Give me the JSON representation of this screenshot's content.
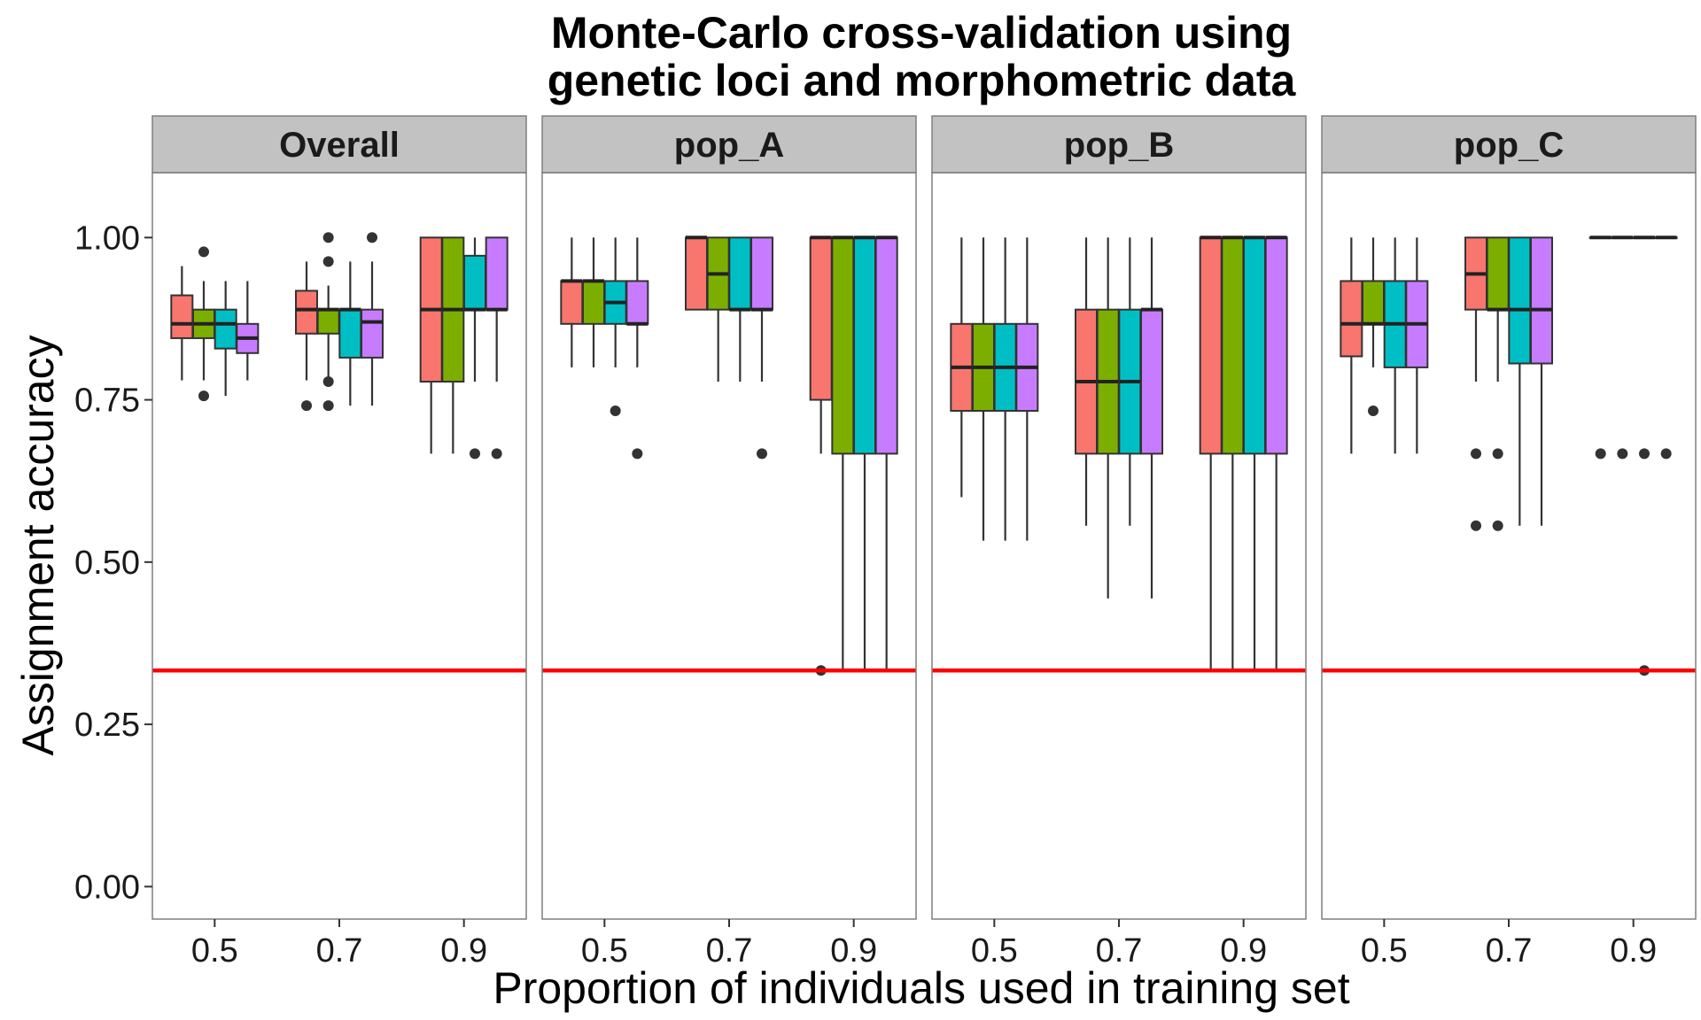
{
  "chart_data": {
    "type": "box",
    "title": [
      "Monte-Carlo cross-validation using",
      "genetic loci and morphometric data"
    ],
    "xlabel": "Proportion of individuals used in training set",
    "ylabel": "Assignment accuracy",
    "ylim": [
      -0.05,
      1.1
    ],
    "yticks": [
      0.0,
      0.25,
      0.5,
      0.75,
      1.0
    ],
    "ytick_labels": [
      "0.00",
      "0.25",
      "0.50",
      "0.75",
      "1.00"
    ],
    "categories": [
      "0.5",
      "0.7",
      "0.9"
    ],
    "reference_line": {
      "y": 0.333,
      "color": "#ff0000"
    },
    "series_colors": [
      "#F8766D",
      "#7CAE00",
      "#00BFC4",
      "#C77CFF"
    ],
    "legend": "none",
    "grid": false,
    "facets": [
      {
        "label": "Overall",
        "boxes": [
          [
            {
              "whislo": 0.78,
              "q1": 0.845,
              "med": 0.867,
              "q3": 0.911,
              "whishi": 0.956,
              "outliers": []
            },
            {
              "whislo": 0.78,
              "q1": 0.845,
              "med": 0.867,
              "q3": 0.889,
              "whishi": 0.933,
              "outliers": [
                0.978,
                0.756
              ]
            },
            {
              "whislo": 0.756,
              "q1": 0.829,
              "med": 0.867,
              "q3": 0.889,
              "whishi": 0.933,
              "outliers": []
            },
            {
              "whislo": 0.78,
              "q1": 0.822,
              "med": 0.845,
              "q3": 0.867,
              "whishi": 0.933,
              "outliers": []
            }
          ],
          [
            {
              "whislo": 0.78,
              "q1": 0.852,
              "med": 0.889,
              "q3": 0.918,
              "whishi": 0.963,
              "outliers": [
                0.741
              ]
            },
            {
              "whislo": 0.78,
              "q1": 0.852,
              "med": 0.889,
              "q3": 0.889,
              "whishi": 0.926,
              "outliers": [
                1.0,
                0.963,
                0.778,
                0.741
              ]
            },
            {
              "whislo": 0.741,
              "q1": 0.815,
              "med": 0.889,
              "q3": 0.889,
              "whishi": 0.963,
              "outliers": []
            },
            {
              "whislo": 0.741,
              "q1": 0.815,
              "med": 0.87,
              "q3": 0.889,
              "whishi": 0.963,
              "outliers": [
                1.0
              ]
            }
          ],
          [
            {
              "whislo": 0.667,
              "q1": 0.778,
              "med": 0.889,
              "q3": 1.0,
              "whishi": 1.0,
              "outliers": []
            },
            {
              "whislo": 0.667,
              "q1": 0.778,
              "med": 0.889,
              "q3": 1.0,
              "whishi": 1.0,
              "outliers": []
            },
            {
              "whislo": 0.778,
              "q1": 0.889,
              "med": 0.889,
              "q3": 0.972,
              "whishi": 1.0,
              "outliers": [
                0.667
              ]
            },
            {
              "whislo": 0.778,
              "q1": 0.889,
              "med": 0.889,
              "q3": 1.0,
              "whishi": 1.0,
              "outliers": [
                0.667
              ]
            }
          ]
        ]
      },
      {
        "label": "pop_A",
        "boxes": [
          [
            {
              "whislo": 0.8,
              "q1": 0.867,
              "med": 0.933,
              "q3": 0.933,
              "whishi": 1.0,
              "outliers": []
            },
            {
              "whislo": 0.8,
              "q1": 0.867,
              "med": 0.933,
              "q3": 0.933,
              "whishi": 1.0,
              "outliers": []
            },
            {
              "whislo": 0.8,
              "q1": 0.867,
              "med": 0.9,
              "q3": 0.933,
              "whishi": 1.0,
              "outliers": [
                0.733
              ]
            },
            {
              "whislo": 0.8,
              "q1": 0.867,
              "med": 0.867,
              "q3": 0.933,
              "whishi": 1.0,
              "outliers": [
                0.667
              ]
            }
          ],
          [
            {
              "whislo": 0.889,
              "q1": 0.889,
              "med": 1.0,
              "q3": 1.0,
              "whishi": 1.0,
              "outliers": []
            },
            {
              "whislo": 0.778,
              "q1": 0.889,
              "med": 0.944,
              "q3": 1.0,
              "whishi": 1.0,
              "outliers": []
            },
            {
              "whislo": 0.778,
              "q1": 0.889,
              "med": 0.889,
              "q3": 1.0,
              "whishi": 1.0,
              "outliers": []
            },
            {
              "whislo": 0.778,
              "q1": 0.889,
              "med": 0.889,
              "q3": 1.0,
              "whishi": 1.0,
              "outliers": [
                0.667
              ]
            }
          ],
          [
            {
              "whislo": 0.667,
              "q1": 0.75,
              "med": 1.0,
              "q3": 1.0,
              "whishi": 1.0,
              "outliers": [
                0.333
              ]
            },
            {
              "whislo": 0.333,
              "q1": 0.667,
              "med": 1.0,
              "q3": 1.0,
              "whishi": 1.0,
              "outliers": []
            },
            {
              "whislo": 0.333,
              "q1": 0.667,
              "med": 1.0,
              "q3": 1.0,
              "whishi": 1.0,
              "outliers": []
            },
            {
              "whislo": 0.333,
              "q1": 0.667,
              "med": 1.0,
              "q3": 1.0,
              "whishi": 1.0,
              "outliers": []
            }
          ]
        ]
      },
      {
        "label": "pop_B",
        "boxes": [
          [
            {
              "whislo": 0.6,
              "q1": 0.733,
              "med": 0.8,
              "q3": 0.867,
              "whishi": 1.0,
              "outliers": []
            },
            {
              "whislo": 0.533,
              "q1": 0.733,
              "med": 0.8,
              "q3": 0.867,
              "whishi": 1.0,
              "outliers": []
            },
            {
              "whislo": 0.533,
              "q1": 0.733,
              "med": 0.8,
              "q3": 0.867,
              "whishi": 1.0,
              "outliers": []
            },
            {
              "whislo": 0.533,
              "q1": 0.733,
              "med": 0.8,
              "q3": 0.867,
              "whishi": 1.0,
              "outliers": []
            }
          ],
          [
            {
              "whislo": 0.556,
              "q1": 0.667,
              "med": 0.778,
              "q3": 0.889,
              "whishi": 1.0,
              "outliers": []
            },
            {
              "whislo": 0.444,
              "q1": 0.667,
              "med": 0.778,
              "q3": 0.889,
              "whishi": 1.0,
              "outliers": []
            },
            {
              "whislo": 0.556,
              "q1": 0.667,
              "med": 0.778,
              "q3": 0.889,
              "whishi": 1.0,
              "outliers": []
            },
            {
              "whislo": 0.444,
              "q1": 0.667,
              "med": 0.889,
              "q3": 0.889,
              "whishi": 1.0,
              "outliers": []
            }
          ],
          [
            {
              "whislo": 0.333,
              "q1": 0.667,
              "med": 1.0,
              "q3": 1.0,
              "whishi": 1.0,
              "outliers": []
            },
            {
              "whislo": 0.333,
              "q1": 0.667,
              "med": 1.0,
              "q3": 1.0,
              "whishi": 1.0,
              "outliers": []
            },
            {
              "whislo": 0.333,
              "q1": 0.667,
              "med": 1.0,
              "q3": 1.0,
              "whishi": 1.0,
              "outliers": []
            },
            {
              "whislo": 0.333,
              "q1": 0.667,
              "med": 1.0,
              "q3": 1.0,
              "whishi": 1.0,
              "outliers": []
            }
          ]
        ]
      },
      {
        "label": "pop_C",
        "boxes": [
          [
            {
              "whislo": 0.667,
              "q1": 0.817,
              "med": 0.867,
              "q3": 0.933,
              "whishi": 1.0,
              "outliers": []
            },
            {
              "whislo": 0.8,
              "q1": 0.867,
              "med": 0.867,
              "q3": 0.933,
              "whishi": 1.0,
              "outliers": [
                0.733
              ]
            },
            {
              "whislo": 0.667,
              "q1": 0.8,
              "med": 0.867,
              "q3": 0.933,
              "whishi": 1.0,
              "outliers": []
            },
            {
              "whislo": 0.667,
              "q1": 0.8,
              "med": 0.867,
              "q3": 0.933,
              "whishi": 1.0,
              "outliers": []
            }
          ],
          [
            {
              "whislo": 0.778,
              "q1": 0.889,
              "med": 0.944,
              "q3": 1.0,
              "whishi": 1.0,
              "outliers": [
                0.667,
                0.556
              ]
            },
            {
              "whislo": 0.778,
              "q1": 0.889,
              "med": 0.889,
              "q3": 1.0,
              "whishi": 1.0,
              "outliers": [
                0.667,
                0.556
              ]
            },
            {
              "whislo": 0.556,
              "q1": 0.806,
              "med": 0.889,
              "q3": 1.0,
              "whishi": 1.0,
              "outliers": []
            },
            {
              "whislo": 0.556,
              "q1": 0.806,
              "med": 0.889,
              "q3": 1.0,
              "whishi": 1.0,
              "outliers": []
            }
          ],
          [
            {
              "whislo": 1.0,
              "q1": 1.0,
              "med": 1.0,
              "q3": 1.0,
              "whishi": 1.0,
              "outliers": [
                0.667
              ]
            },
            {
              "whislo": 1.0,
              "q1": 1.0,
              "med": 1.0,
              "q3": 1.0,
              "whishi": 1.0,
              "outliers": [
                0.667
              ]
            },
            {
              "whislo": 1.0,
              "q1": 1.0,
              "med": 1.0,
              "q3": 1.0,
              "whishi": 1.0,
              "outliers": [
                0.667,
                0.333
              ]
            },
            {
              "whislo": 1.0,
              "q1": 1.0,
              "med": 1.0,
              "q3": 1.0,
              "whishi": 1.0,
              "outliers": [
                0.667
              ]
            }
          ]
        ]
      }
    ]
  }
}
